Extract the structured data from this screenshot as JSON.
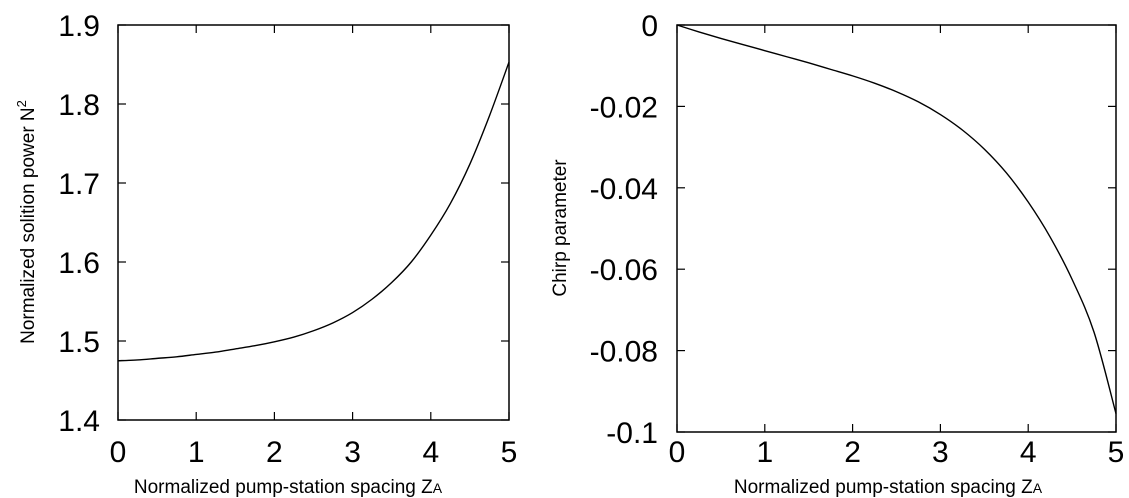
{
  "chart_data": [
    {
      "type": "line",
      "xlabel": "Normalized pump-station spacing Z",
      "xlabel_sub": "A",
      "ylabel": "Normalized solition power N",
      "ylabel_sup": "2",
      "xlim": [
        0,
        5
      ],
      "ylim": [
        1.4,
        1.9
      ],
      "xticks": [
        "0",
        "1",
        "2",
        "3",
        "4",
        "5"
      ],
      "yticks": [
        "1.9",
        "1.8",
        "1.7",
        "1.6",
        "1.5",
        "1.4"
      ],
      "grid": false,
      "series": [
        {
          "x": [
            0,
            0.25,
            0.5,
            0.75,
            1,
            1.25,
            1.5,
            1.75,
            2,
            2.25,
            2.5,
            2.75,
            3,
            3.25,
            3.5,
            3.75,
            4,
            4.25,
            4.5,
            4.75,
            5
          ],
          "y": [
            1.475,
            1.476,
            1.478,
            1.48,
            1.483,
            1.486,
            1.49,
            1.494,
            1.499,
            1.505,
            1.513,
            1.523,
            1.536,
            1.553,
            1.574,
            1.6,
            1.634,
            1.674,
            1.724,
            1.785,
            1.853
          ]
        }
      ]
    },
    {
      "type": "line",
      "xlabel": "Normalized pump-station spacing Z",
      "xlabel_sub": "A",
      "ylabel": "Chirp parameter",
      "xlim": [
        0,
        5
      ],
      "ylim": [
        -0.1,
        0
      ],
      "xticks": [
        "0",
        "1",
        "2",
        "3",
        "4",
        "5"
      ],
      "yticks": [
        "0",
        "-0.02",
        "-0.04",
        "-0.06",
        "-0.08",
        "-0.1"
      ],
      "grid": false,
      "series": [
        {
          "x": [
            0,
            0.25,
            0.5,
            0.75,
            1,
            1.25,
            1.5,
            1.75,
            2,
            2.25,
            2.5,
            2.75,
            3,
            3.25,
            3.5,
            3.75,
            4,
            4.25,
            4.5,
            4.75,
            5
          ],
          "y": [
            0,
            -0.0017,
            -0.0033,
            -0.0048,
            -0.0063,
            -0.0078,
            -0.0093,
            -0.0109,
            -0.0125,
            -0.0143,
            -0.0164,
            -0.0189,
            -0.022,
            -0.0258,
            -0.0305,
            -0.0363,
            -0.0435,
            -0.0521,
            -0.0625,
            -0.0755,
            -0.0955
          ]
        }
      ]
    }
  ]
}
